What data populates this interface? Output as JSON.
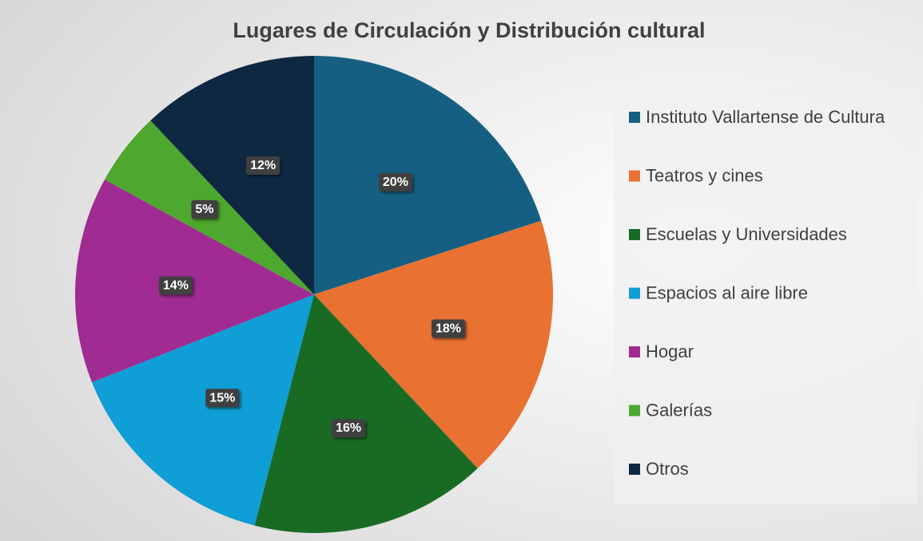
{
  "chart_data": {
    "type": "pie",
    "title": "Lugares de Circulación y Distribución cultural",
    "categories": [
      "Instituto Vallartense de Cultura",
      "Teatros y cines",
      "Escuelas y Universidades",
      "Espacios al aire libre",
      "Hogar",
      "Galerías",
      "Otros"
    ],
    "values": [
      20,
      18,
      16,
      15,
      14,
      5,
      12
    ],
    "value_labels": [
      "20%",
      "18%",
      "16%",
      "15%",
      "14%",
      "5%",
      "12%"
    ],
    "colors": [
      "#156082",
      "#E97132",
      "#196B24",
      "#0F9ED5",
      "#A02B93",
      "#4EA72E",
      "#0E2841"
    ],
    "legend": "right"
  }
}
